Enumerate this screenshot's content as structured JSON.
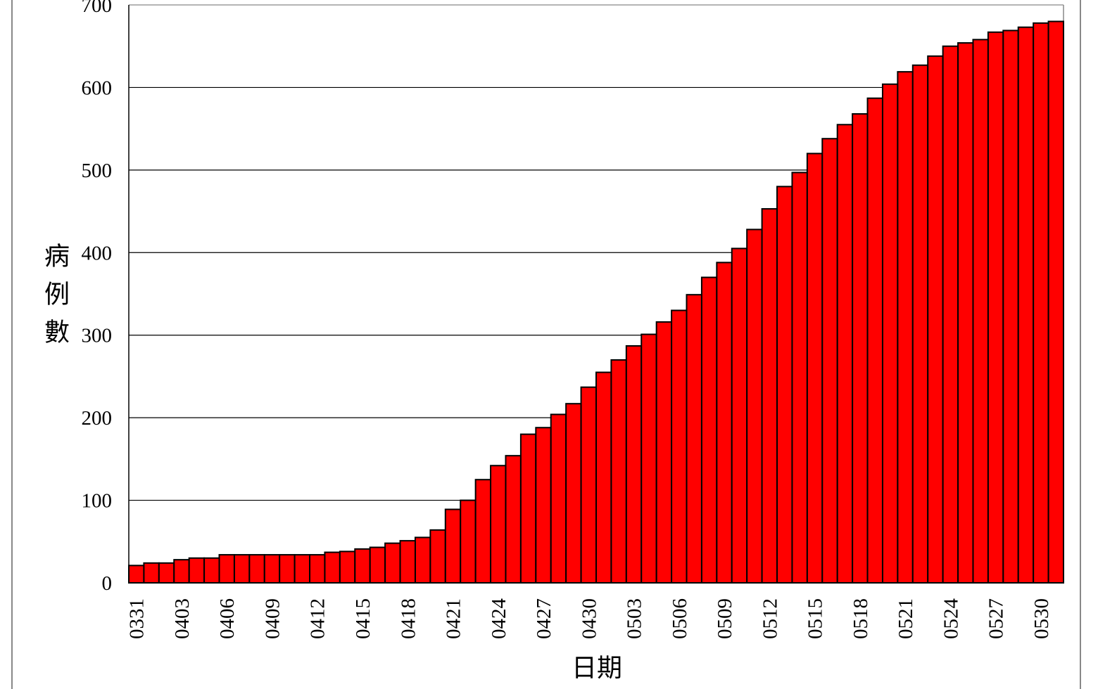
{
  "chart_data": {
    "type": "bar",
    "y_label": "病例數",
    "x_label": "日期",
    "categories": [
      "0331",
      null,
      null,
      "0403",
      null,
      null,
      "0406",
      null,
      null,
      "0409",
      null,
      null,
      "0412",
      null,
      null,
      "0415",
      null,
      null,
      "0418",
      null,
      null,
      "0421",
      null,
      null,
      "0424",
      null,
      null,
      "0427",
      null,
      null,
      "0430",
      null,
      null,
      "0503",
      null,
      null,
      "0506",
      null,
      null,
      "0509",
      null,
      null,
      "0512",
      null,
      null,
      "0515",
      null,
      null,
      "0518",
      null,
      null,
      "0521",
      null,
      null,
      "0524",
      null,
      null,
      "0527",
      null,
      null,
      "0530",
      null
    ],
    "values": [
      21,
      24,
      24,
      28,
      30,
      30,
      34,
      34,
      34,
      34,
      34,
      34,
      34,
      37,
      38,
      41,
      43,
      48,
      51,
      55,
      64,
      89,
      100,
      125,
      142,
      154,
      180,
      188,
      204,
      217,
      237,
      255,
      270,
      287,
      301,
      316,
      330,
      349,
      370,
      388,
      405,
      428,
      453,
      480,
      497,
      520,
      538,
      555,
      568,
      587,
      604,
      619,
      627,
      638,
      650,
      654,
      658,
      667,
      669,
      673,
      678,
      680
    ],
    "color": "#ff0000",
    "ylim": [
      0,
      700
    ],
    "yticks": [
      0,
      100,
      200,
      300,
      400,
      500,
      600,
      700
    ],
    "grid": true
  }
}
